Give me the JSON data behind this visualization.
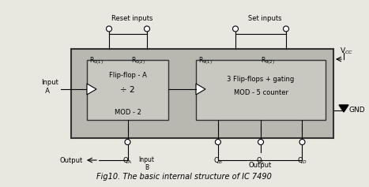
{
  "fig_width": 4.67,
  "fig_height": 2.37,
  "dpi": 100,
  "bg_color": "#e8e8e0",
  "caption": "Fig10. The basic internal structure of IC 7490",
  "title_reset": "Reset inputs",
  "title_set": "Set inputs",
  "label_R01": "R$_{0(1)}$",
  "label_R02": "R$_{0(2)}$",
  "label_R91": "R$_{9(1)}$",
  "label_R92": "R$_{9(2)}$",
  "label_flipA": "Flip-flop - A",
  "label_div2": "÷ 2",
  "label_mod2": "MOD - 2",
  "label_3ff": "3 Flip-flops + gating",
  "label_mod5": "MOD - 5 counter",
  "label_inputA": "Input\n  A",
  "label_QA": "Q$_A$",
  "label_QB": "Q$_B$",
  "label_QC": "Q$_C$",
  "label_QD": "Q$_D$",
  "label_inputB": "Input\nB",
  "label_outputA": "Output",
  "label_outputBCD": "Output",
  "label_vcc": "V$_{CC}$",
  "label_gnd": "GND",
  "outer_box_color": "#b8b8b0",
  "inner_box_color": "#c8c8c0"
}
